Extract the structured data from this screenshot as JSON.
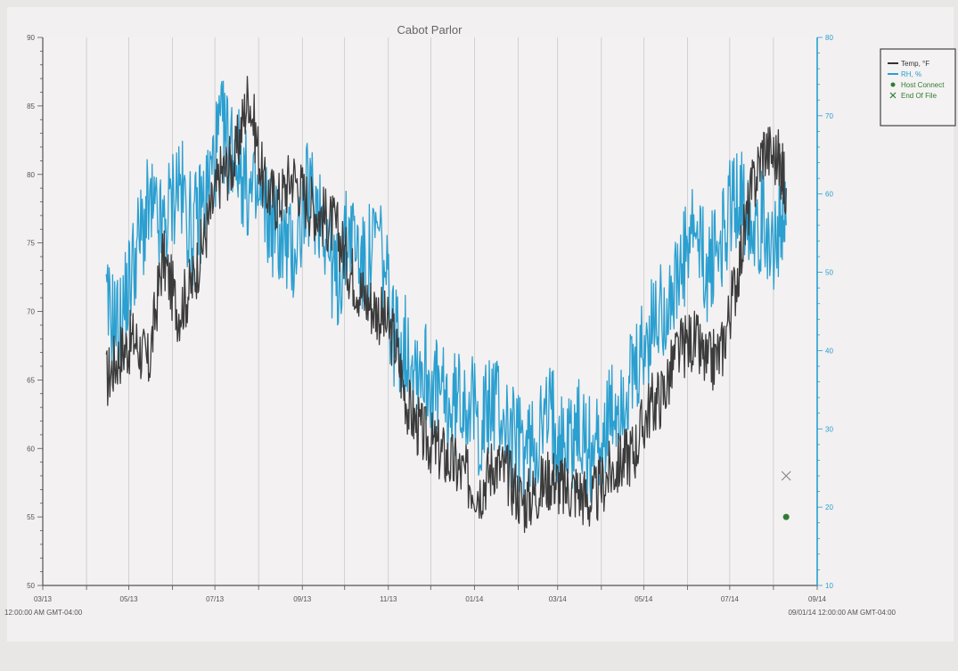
{
  "chart_data": {
    "type": "line",
    "title": "Cabot Parlor",
    "y_left": {
      "range": [
        50,
        90
      ],
      "ticks": [
        "50",
        "55",
        "60",
        "65",
        "70",
        "75",
        "80",
        "85",
        "90"
      ]
    },
    "y_right": {
      "range": [
        10,
        80
      ],
      "ticks": [
        "10",
        "20",
        "30",
        "40",
        "50",
        "60",
        "70",
        "80"
      ]
    },
    "x_axis": {
      "ticks": [
        "03/13",
        "05/13",
        "07/13",
        "09/13",
        "11/13",
        "01/14",
        "03/14",
        "05/14",
        "07/14",
        "09/14"
      ],
      "start_label": "12:00:00 AM GMT-04:00",
      "end_label": "09/01/14 12:00:00 AM GMT-04:00"
    },
    "grid": true,
    "legend_position": "top-right",
    "legend": [
      {
        "label": "Temp, °F",
        "color": "#333333"
      },
      {
        "label": "RH, %",
        "color": "#2a9fd0"
      },
      {
        "label": "Host Connect",
        "color": "#2e7d32"
      },
      {
        "label": "End Of File",
        "color": "#2e7d32"
      }
    ],
    "series": [
      {
        "name": "Temp, °F",
        "axis": "left",
        "color": "#3b3b3b",
        "x": [
          "2013-04-15",
          "2013-04-25",
          "2013-05-05",
          "2013-05-15",
          "2013-05-25",
          "2013-06-05",
          "2013-06-15",
          "2013-06-25",
          "2013-07-05",
          "2013-07-15",
          "2013-07-25",
          "2013-08-05",
          "2013-08-15",
          "2013-08-25",
          "2013-09-05",
          "2013-09-15",
          "2013-09-25",
          "2013-10-05",
          "2013-10-15",
          "2013-10-25",
          "2013-11-05",
          "2013-11-15",
          "2013-11-25",
          "2013-12-05",
          "2013-12-15",
          "2013-12-25",
          "2014-01-05",
          "2014-01-15",
          "2014-01-25",
          "2014-02-05",
          "2014-02-15",
          "2014-02-25",
          "2014-03-05",
          "2014-03-15",
          "2014-03-25",
          "2014-04-05",
          "2014-04-15",
          "2014-04-25",
          "2014-05-05",
          "2014-05-15",
          "2014-05-25",
          "2014-06-05",
          "2014-06-15",
          "2014-06-25",
          "2014-07-05",
          "2014-07-15",
          "2014-07-25",
          "2014-08-05",
          "2014-08-10"
        ],
        "values": [
          65,
          67,
          68,
          66,
          74,
          70,
          72,
          76,
          80,
          81,
          86,
          79,
          78,
          80,
          78,
          77,
          76,
          73,
          71,
          70,
          68,
          63,
          61,
          60,
          59,
          58,
          57,
          59,
          58,
          56,
          57,
          58,
          57,
          57,
          56,
          58,
          59,
          60,
          63,
          64,
          67,
          68,
          66,
          67,
          72,
          78,
          82,
          81,
          79
        ]
      },
      {
        "name": "RH, %",
        "axis": "right",
        "color": "#2a9fd0",
        "x": [
          "2013-04-15",
          "2013-04-25",
          "2013-05-05",
          "2013-05-15",
          "2013-05-25",
          "2013-06-05",
          "2013-06-15",
          "2013-06-25",
          "2013-07-05",
          "2013-07-15",
          "2013-07-25",
          "2013-08-05",
          "2013-08-15",
          "2013-08-25",
          "2013-09-05",
          "2013-09-15",
          "2013-09-25",
          "2013-10-05",
          "2013-10-15",
          "2013-10-25",
          "2013-11-05",
          "2013-11-15",
          "2013-11-25",
          "2013-12-05",
          "2013-12-15",
          "2013-12-25",
          "2014-01-05",
          "2014-01-15",
          "2014-01-25",
          "2014-02-05",
          "2014-02-15",
          "2014-02-25",
          "2014-03-05",
          "2014-03-15",
          "2014-03-25",
          "2014-04-05",
          "2014-04-15",
          "2014-04-25",
          "2014-05-05",
          "2014-05-15",
          "2014-05-25",
          "2014-06-05",
          "2014-06-15",
          "2014-06-25",
          "2014-07-05",
          "2014-07-15",
          "2014-07-25",
          "2014-08-05",
          "2014-08-10"
        ],
        "values": [
          45,
          43,
          52,
          58,
          55,
          62,
          55,
          60,
          68,
          66,
          60,
          58,
          55,
          52,
          60,
          58,
          48,
          56,
          50,
          55,
          42,
          40,
          38,
          35,
          32,
          35,
          30,
          34,
          30,
          27,
          29,
          32,
          28,
          30,
          27,
          30,
          34,
          36,
          42,
          46,
          48,
          55,
          50,
          54,
          60,
          58,
          56,
          54,
          56
        ]
      }
    ],
    "markers": [
      {
        "name": "End Of File",
        "symbol": "x",
        "x": "2014-08-10",
        "y": 58,
        "axis": "left",
        "color": "#888888"
      },
      {
        "name": "Host Connect",
        "symbol": "dot",
        "x": "2014-08-10",
        "y": 55,
        "axis": "left",
        "color": "#2e7d32"
      }
    ]
  }
}
